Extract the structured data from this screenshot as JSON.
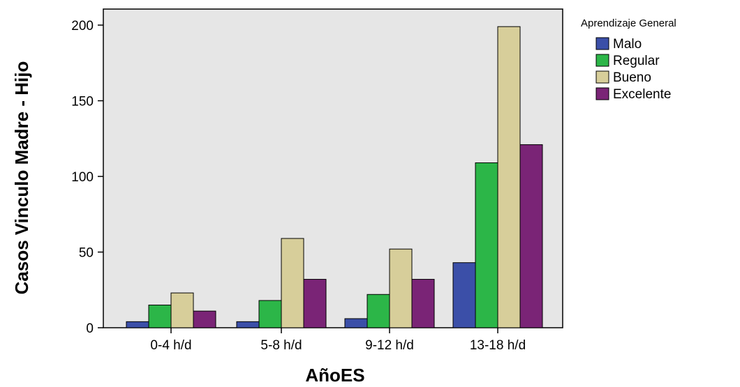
{
  "chart_data": {
    "type": "bar",
    "categories": [
      "0-4 h/d",
      "5-8 h/d",
      "9-12 h/d",
      "13-18 h/d"
    ],
    "series": [
      {
        "name": "Malo",
        "values": [
          4,
          4,
          6,
          43
        ],
        "color": "#3b4fa8"
      },
      {
        "name": "Regular",
        "values": [
          15,
          18,
          22,
          109
        ],
        "color": "#2cb648"
      },
      {
        "name": "Bueno",
        "values": [
          23,
          59,
          52,
          199
        ],
        "color": "#d7ce9a"
      },
      {
        "name": "Excelente",
        "values": [
          11,
          32,
          32,
          121
        ],
        "color": "#7a2476"
      }
    ],
    "xlabel": "AñoES",
    "ylabel": "Casos Vinculo Madre - Hijo",
    "ylim": [
      0,
      210
    ],
    "yticks": [
      0,
      50,
      100,
      150,
      200
    ],
    "grid": false,
    "legend": {
      "title": "Aprendizaje General",
      "placement": "right"
    },
    "plot_background": "#e6e6e6"
  }
}
